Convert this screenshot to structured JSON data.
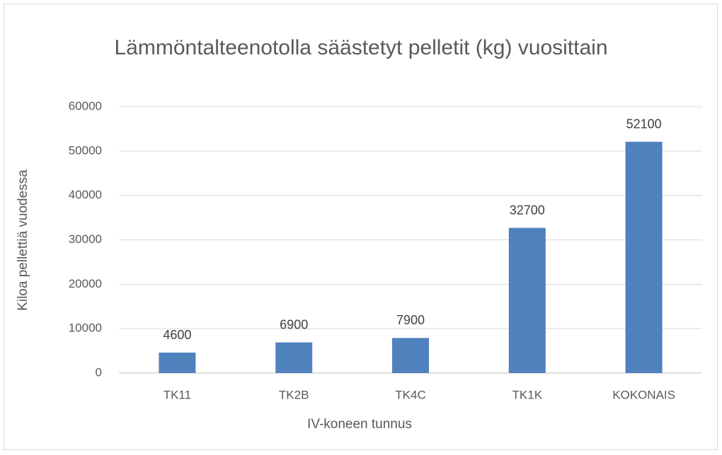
{
  "chart_data": {
    "type": "bar",
    "title": "Lämmöntalteenotolla säästetyt pelletit (kg) vuosittain",
    "x_label": "IV-koneen tunnus",
    "y_label": "Kiloa pellettiä vuodessa",
    "categories": [
      "TK11",
      "TK2B",
      "TK4C",
      "TK1K",
      "KOKONAIS"
    ],
    "values": [
      4600,
      6900,
      7900,
      32700,
      52100
    ],
    "color": "#4f81bd",
    "ylim": [
      0,
      60000
    ],
    "yticks": [
      0,
      10000,
      20000,
      30000,
      40000,
      50000,
      60000
    ],
    "grid": true
  }
}
